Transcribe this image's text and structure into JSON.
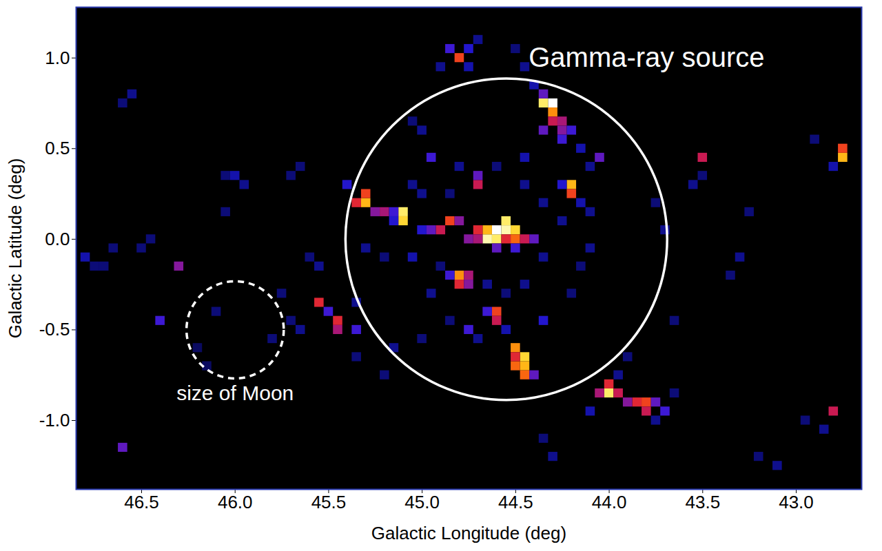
{
  "chart_data": {
    "type": "heatmap",
    "xlabel": "Galactic Longitude (deg)",
    "ylabel": "Galactic Latitude (deg)",
    "xlim": [
      46.85,
      42.65
    ],
    "ylim": [
      -1.38,
      1.28
    ],
    "xticks": [
      46.5,
      {
        "value": 46,
        "label": "46.0"
      },
      45.5,
      {
        "value": 45,
        "label": "45.0"
      },
      44.5,
      {
        "value": 44,
        "label": "44.0"
      },
      43.5,
      {
        "value": 43,
        "label": "43.0"
      }
    ],
    "yticks": [
      {
        "value": 1,
        "label": "1.0"
      },
      0.5,
      {
        "value": 0,
        "label": "0.0"
      },
      -0.5,
      {
        "value": -1,
        "label": "-1.0"
      }
    ],
    "cell_size": 0.05,
    "cells": [
      [
        44.65,
        0.0,
        0.95
      ],
      [
        44.6,
        0.0,
        0.9
      ],
      [
        44.6,
        0.05,
        1.0
      ],
      [
        44.55,
        0.05,
        0.95
      ],
      [
        44.55,
        0.1,
        0.9
      ],
      [
        44.5,
        0.05,
        0.85
      ],
      [
        44.5,
        0.0,
        0.7
      ],
      [
        44.65,
        0.05,
        0.8
      ],
      [
        44.7,
        0.05,
        0.6
      ],
      [
        44.45,
        0.0,
        0.55
      ],
      [
        44.4,
        0.0,
        0.4
      ],
      [
        44.75,
        0.0,
        0.45
      ],
      [
        44.7,
        0.0,
        0.5
      ],
      [
        44.55,
        0.0,
        0.6
      ],
      [
        44.6,
        -0.05,
        0.4
      ],
      [
        44.5,
        -0.05,
        0.35
      ],
      [
        44.85,
        0.1,
        0.65
      ],
      [
        44.9,
        0.05,
        0.55
      ],
      [
        44.95,
        0.05,
        0.4
      ],
      [
        44.8,
        0.1,
        0.45
      ],
      [
        45.0,
        0.05,
        0.3
      ],
      [
        45.3,
        0.2,
        0.8
      ],
      [
        45.3,
        0.25,
        0.65
      ],
      [
        45.35,
        0.2,
        0.6
      ],
      [
        45.25,
        0.15,
        0.45
      ],
      [
        45.2,
        0.15,
        0.5
      ],
      [
        45.1,
        0.15,
        0.9
      ],
      [
        45.1,
        0.1,
        0.85
      ],
      [
        45.15,
        0.15,
        0.35
      ],
      [
        45.15,
        0.1,
        0.3
      ],
      [
        44.3,
        0.75,
        1.0
      ],
      [
        44.35,
        0.75,
        0.9
      ],
      [
        44.3,
        0.7,
        0.75
      ],
      [
        44.25,
        0.65,
        0.5
      ],
      [
        44.3,
        0.65,
        0.55
      ],
      [
        44.25,
        0.6,
        0.45
      ],
      [
        44.2,
        0.6,
        0.35
      ],
      [
        44.35,
        0.6,
        0.4
      ],
      [
        44.35,
        0.8,
        0.4
      ],
      [
        44.25,
        0.55,
        0.35
      ],
      [
        44.8,
        1.0,
        0.65
      ],
      [
        44.85,
        1.05,
        0.35
      ],
      [
        44.75,
        1.05,
        0.3
      ],
      [
        44.2,
        0.3,
        0.8
      ],
      [
        44.2,
        0.25,
        0.65
      ],
      [
        44.25,
        0.3,
        0.3
      ],
      [
        44.7,
        0.3,
        0.55
      ],
      [
        44.7,
        0.35,
        0.4
      ],
      [
        44.8,
        -0.2,
        0.75
      ],
      [
        44.8,
        -0.25,
        0.6
      ],
      [
        44.75,
        -0.2,
        0.5
      ],
      [
        44.75,
        -0.25,
        0.45
      ],
      [
        44.85,
        -0.2,
        0.35
      ],
      [
        44.6,
        -0.4,
        0.65
      ],
      [
        44.6,
        -0.45,
        0.55
      ],
      [
        44.65,
        -0.4,
        0.35
      ],
      [
        44.5,
        -0.6,
        0.75
      ],
      [
        44.45,
        -0.65,
        0.85
      ],
      [
        44.45,
        -0.7,
        0.8
      ],
      [
        44.5,
        -0.7,
        0.7
      ],
      [
        44.45,
        -0.75,
        0.7
      ],
      [
        44.5,
        -0.65,
        0.6
      ],
      [
        44.4,
        -0.75,
        0.4
      ],
      [
        44.0,
        -0.85,
        0.9
      ],
      [
        44.0,
        -0.8,
        0.6
      ],
      [
        44.05,
        -0.85,
        0.5
      ],
      [
        43.95,
        -0.85,
        0.55
      ],
      [
        43.85,
        -0.9,
        0.6
      ],
      [
        43.8,
        -0.9,
        0.65
      ],
      [
        43.8,
        -0.95,
        0.55
      ],
      [
        43.75,
        -0.9,
        0.4
      ],
      [
        43.9,
        -0.9,
        0.45
      ],
      [
        43.7,
        -0.95,
        0.35
      ],
      [
        45.55,
        -0.35,
        0.6
      ],
      [
        45.45,
        -0.45,
        0.6
      ],
      [
        45.45,
        -0.5,
        0.5
      ],
      [
        45.5,
        -0.4,
        0.35
      ],
      [
        45.35,
        -0.5,
        0.35
      ],
      [
        44.05,
        0.45,
        0.4
      ],
      [
        43.5,
        0.45,
        0.55
      ],
      [
        42.75,
        0.45,
        0.8
      ],
      [
        42.75,
        0.5,
        0.65
      ],
      [
        46.3,
        -0.15,
        0.45
      ],
      [
        42.8,
        -0.95,
        0.55
      ],
      [
        46.6,
        -1.15,
        0.4
      ],
      [
        44.35,
        -0.45,
        0.3
      ],
      [
        44.75,
        -0.5,
        0.35
      ],
      [
        44.95,
        0.45,
        0.35
      ],
      [
        46.75,
        -0.15,
        0.2
      ],
      [
        46.8,
        -0.1,
        0.25
      ],
      [
        46.7,
        -0.15,
        0.2
      ],
      [
        46.65,
        -0.05,
        0.2
      ],
      [
        46.45,
        0.0,
        0.2
      ],
      [
        46.5,
        -0.05,
        0.2
      ],
      [
        46.55,
        0.8,
        0.22
      ],
      [
        46.6,
        0.75,
        0.2
      ],
      [
        46.0,
        0.35,
        0.25
      ],
      [
        45.95,
        0.3,
        0.22
      ],
      [
        46.05,
        0.35,
        0.2
      ],
      [
        45.7,
        0.35,
        0.2
      ],
      [
        45.65,
        0.4,
        0.2
      ],
      [
        45.6,
        -0.1,
        0.2
      ],
      [
        45.55,
        -0.15,
        0.22
      ],
      [
        45.3,
        -0.05,
        0.22
      ],
      [
        45.2,
        -0.1,
        0.2
      ],
      [
        45.05,
        -0.1,
        0.25
      ],
      [
        45.0,
        0.25,
        0.22
      ],
      [
        44.85,
        0.25,
        0.2
      ],
      [
        44.8,
        0.4,
        0.22
      ],
      [
        45.05,
        0.65,
        0.2
      ],
      [
        45.0,
        0.6,
        0.22
      ],
      [
        44.9,
        0.95,
        0.22
      ],
      [
        44.75,
        0.95,
        0.25
      ],
      [
        44.7,
        1.1,
        0.22
      ],
      [
        44.5,
        1.05,
        0.2
      ],
      [
        44.45,
        0.95,
        0.22
      ],
      [
        44.4,
        0.85,
        0.25
      ],
      [
        44.15,
        0.5,
        0.25
      ],
      [
        44.1,
        0.4,
        0.22
      ],
      [
        44.15,
        0.2,
        0.25
      ],
      [
        44.1,
        0.15,
        0.22
      ],
      [
        44.25,
        0.1,
        0.22
      ],
      [
        44.35,
        -0.1,
        0.22
      ],
      [
        44.15,
        -0.15,
        0.2
      ],
      [
        44.1,
        -0.05,
        0.22
      ],
      [
        44.2,
        -0.3,
        0.2
      ],
      [
        44.45,
        -0.25,
        0.22
      ],
      [
        44.55,
        -0.3,
        0.2
      ],
      [
        44.65,
        -0.25,
        0.22
      ],
      [
        44.7,
        -0.55,
        0.22
      ],
      [
        44.55,
        -0.5,
        0.25
      ],
      [
        44.85,
        -0.45,
        0.2
      ],
      [
        44.95,
        -0.3,
        0.22
      ],
      [
        45.0,
        -0.55,
        0.2
      ],
      [
        45.15,
        -0.6,
        0.22
      ],
      [
        45.2,
        -0.75,
        0.2
      ],
      [
        45.65,
        -0.5,
        0.22
      ],
      [
        45.7,
        -0.45,
        0.2
      ],
      [
        45.75,
        -0.3,
        0.2
      ],
      [
        45.8,
        -0.55,
        0.2
      ],
      [
        43.9,
        -0.65,
        0.2
      ],
      [
        43.95,
        -0.75,
        0.22
      ],
      [
        44.1,
        -0.95,
        0.25
      ],
      [
        43.75,
        -1.0,
        0.22
      ],
      [
        43.65,
        -0.85,
        0.2
      ],
      [
        43.65,
        -0.45,
        0.2
      ],
      [
        43.7,
        0.05,
        0.22
      ],
      [
        43.75,
        0.2,
        0.2
      ],
      [
        43.55,
        0.3,
        0.22
      ],
      [
        43.5,
        0.35,
        0.2
      ],
      [
        43.3,
        -0.1,
        0.22
      ],
      [
        43.35,
        -0.2,
        0.2
      ],
      [
        43.25,
        0.15,
        0.2
      ],
      [
        43.1,
        -1.25,
        0.22
      ],
      [
        43.2,
        -1.2,
        0.2
      ],
      [
        42.95,
        -1.0,
        0.2
      ],
      [
        42.85,
        -1.05,
        0.22
      ],
      [
        42.8,
        0.4,
        0.25
      ],
      [
        42.9,
        0.55,
        0.2
      ],
      [
        44.3,
        -1.2,
        0.22
      ],
      [
        44.35,
        -1.1,
        0.2
      ],
      [
        46.4,
        -0.45,
        0.35
      ],
      [
        46.1,
        -0.4,
        0.2
      ],
      [
        46.2,
        -0.6,
        0.18
      ],
      [
        46.05,
        0.15,
        0.2
      ],
      [
        46.15,
        -0.7,
        0.18
      ],
      [
        44.6,
        0.4,
        0.2
      ],
      [
        44.45,
        0.3,
        0.22
      ],
      [
        44.45,
        0.45,
        0.25
      ],
      [
        44.35,
        0.2,
        0.22
      ],
      [
        44.9,
        -0.15,
        0.2
      ],
      [
        45.05,
        0.3,
        0.22
      ],
      [
        45.4,
        0.3,
        0.3
      ],
      [
        45.35,
        -0.35,
        0.22
      ],
      [
        45.35,
        -0.65,
        0.2
      ]
    ],
    "annotations": [
      {
        "text": "Gamma-ray source",
        "text_x": 43.8,
        "text_y": 1.0,
        "center": [
          44.55,
          0.0
        ],
        "radius": 0.86,
        "line_style": "solid"
      },
      {
        "text": "size of Moon",
        "text_x": 46.0,
        "text_y": -0.85,
        "center": [
          46.0,
          -0.5
        ],
        "radius": 0.26,
        "line_style": "dashed"
      }
    ]
  }
}
